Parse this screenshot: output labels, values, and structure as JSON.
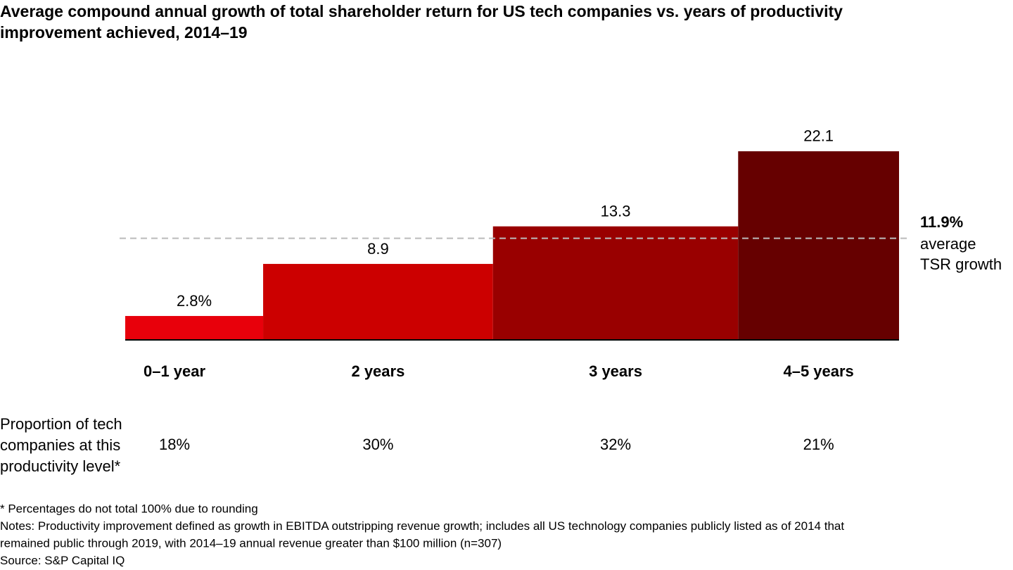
{
  "chart_data": {
    "type": "mekko",
    "title_lines": [
      "Average compound annual growth of total shareholder return for US tech companies vs. years of productivity",
      "improvement achieved, 2014–19"
    ],
    "categories": [
      "0–1 year",
      "2 years",
      "3 years",
      "4–5 years"
    ],
    "values": [
      2.8,
      8.9,
      13.3,
      22.1
    ],
    "value_labels": [
      "2.8%",
      "8.9",
      "13.3",
      "22.1"
    ],
    "colors": [
      "#e8000b",
      "#cc0000",
      "#990000",
      "#660000"
    ],
    "widths": {
      "label_lines": [
        "Proportion of tech",
        "companies at this",
        "productivity level*"
      ],
      "values": [
        18,
        30,
        32,
        21
      ],
      "value_labels": [
        "18%",
        "30%",
        "32%",
        "21%"
      ]
    },
    "reference": {
      "value": 11.9,
      "value_label": "11.9%",
      "label_lines": [
        "average",
        "TSR growth"
      ]
    },
    "footnotes": [
      "* Percentages do not total 100% due to rounding",
      "Notes: Productivity improvement defined as growth in EBITDA outstripping revenue growth; includes all US technology companies publicly listed as of 2014 that",
      "remained public through 2019, with 2014–19 annual revenue greater than $100 million (n=307)",
      "Source: S&P Capital IQ"
    ]
  }
}
